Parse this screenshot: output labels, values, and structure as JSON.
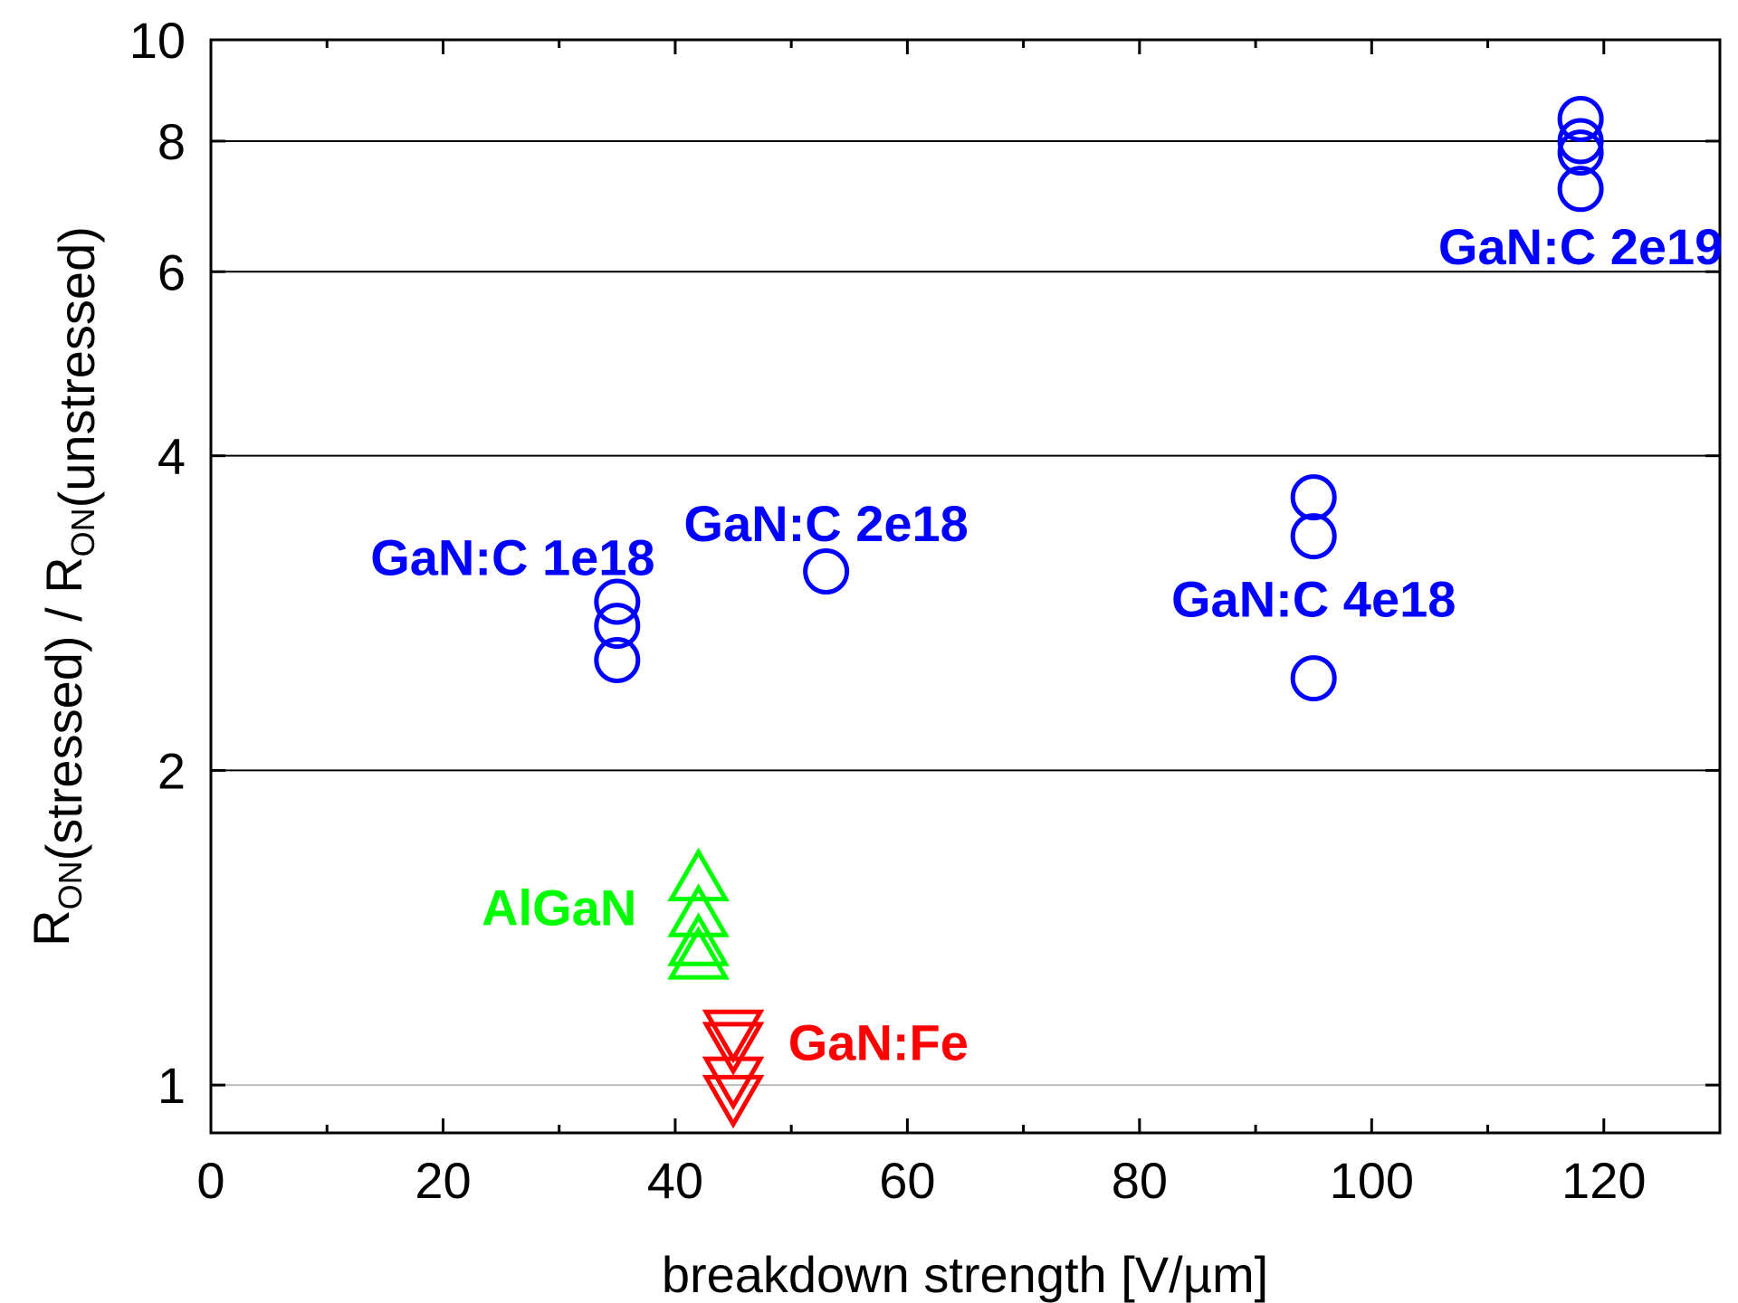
{
  "chart_data": {
    "type": "scatter",
    "title": "",
    "xlabel": "breakdown strength [V/µm]",
    "ylabel": {
      "parts": [
        {
          "text": "R",
          "sub": "ON"
        },
        {
          "text": "(stressed) / R",
          "sub": "ON"
        },
        {
          "text": "(unstressed)",
          "sub": ""
        }
      ]
    },
    "xlim": [
      0,
      130
    ],
    "ylim": [
      0.9,
      10
    ],
    "yscale": "log",
    "x_ticks": [
      0,
      20,
      40,
      60,
      80,
      100,
      120
    ],
    "y_ticks": [
      1,
      2,
      4,
      6,
      8,
      10
    ],
    "grid": "horizontal at y ticks",
    "legend": "none",
    "series": [
      {
        "marker": "circle",
        "color": "#0000ff",
        "points": [
          {
            "x": 35,
            "y": 2.9
          },
          {
            "x": 35,
            "y": 2.75
          },
          {
            "x": 35,
            "y": 2.55
          },
          {
            "x": 53,
            "y": 3.1
          },
          {
            "x": 95,
            "y": 3.65
          },
          {
            "x": 95,
            "y": 3.35
          },
          {
            "x": 95,
            "y": 2.45
          },
          {
            "x": 118,
            "y": 8.4
          },
          {
            "x": 118,
            "y": 8.0
          },
          {
            "x": 118,
            "y": 7.8
          },
          {
            "x": 118,
            "y": 7.2
          }
        ]
      },
      {
        "marker": "triangle-up",
        "color": "#00ff00",
        "points": [
          {
            "x": 42,
            "y": 1.58
          },
          {
            "x": 42,
            "y": 1.46
          },
          {
            "x": 42,
            "y": 1.37
          },
          {
            "x": 42,
            "y": 1.33
          }
        ]
      },
      {
        "marker": "triangle-down",
        "color": "#ff0000",
        "points": [
          {
            "x": 45,
            "y": 1.12
          },
          {
            "x": 45,
            "y": 1.09
          },
          {
            "x": 45,
            "y": 1.01
          },
          {
            "x": 45,
            "y": 0.97
          }
        ]
      }
    ],
    "annotations": [
      {
        "text": "GaN:C 1e18",
        "x": 26,
        "y": 3.2,
        "color": "#0000ff"
      },
      {
        "text": "GaN:C 2e18",
        "x": 53,
        "y": 3.45,
        "color": "#0000ff"
      },
      {
        "text": "GaN:C 4e18",
        "x": 95,
        "y": 2.92,
        "color": "#0000ff"
      },
      {
        "text": "GaN:C 2e19",
        "x": 118,
        "y": 6.35,
        "color": "#0000ff"
      },
      {
        "text": "AlGaN",
        "x": 30,
        "y": 1.48,
        "color": "#00ff00"
      },
      {
        "text": "GaN:Fe",
        "x": 57.5,
        "y": 1.1,
        "color": "#ff0000"
      }
    ]
  }
}
